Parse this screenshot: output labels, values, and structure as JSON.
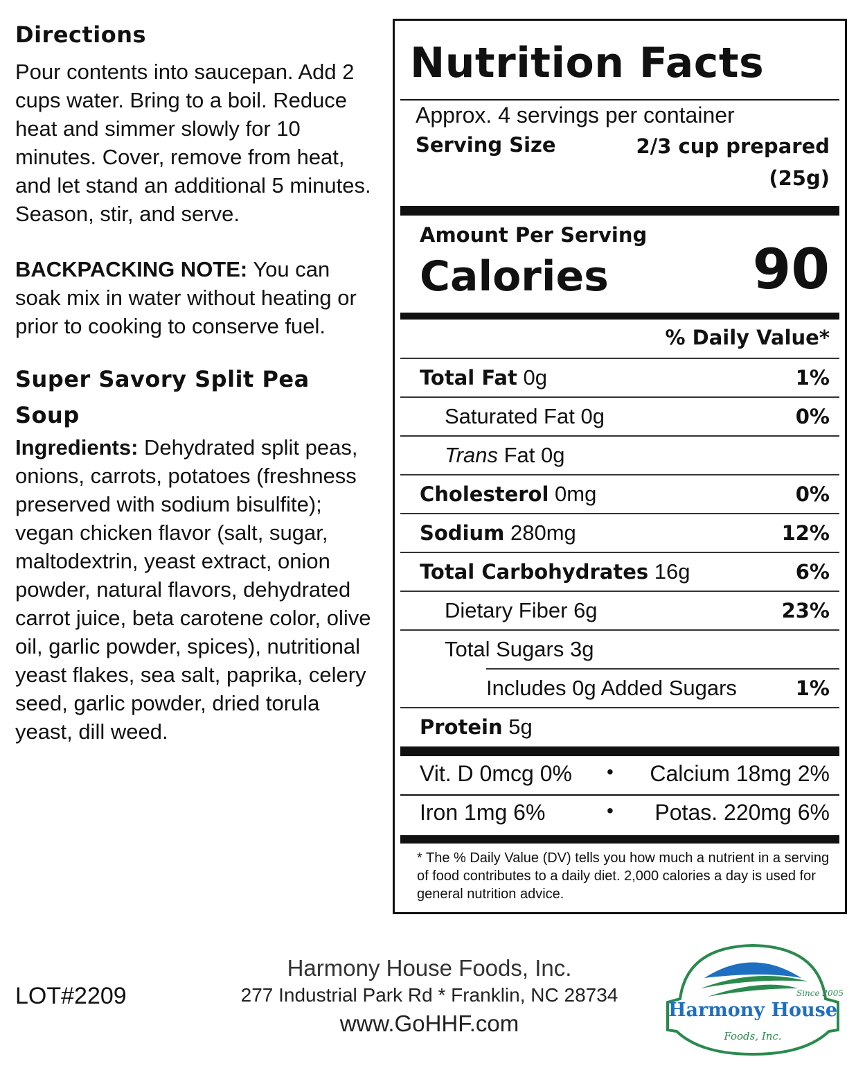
{
  "directions": {
    "heading": "Directions",
    "text": "Pour contents into saucepan. Add 2 cups water. Bring to a boil. Reduce heat and simmer slowly for 10 minutes. Cover, remove from heat, and let stand an additional 5 minutes. Season, stir, and serve."
  },
  "backpacking": {
    "label": "BACKPACKING NOTE:",
    "text": "You can soak mix in water without heating or prior to cooking to conserve fuel."
  },
  "product": {
    "name": "Super Savory Split Pea Soup",
    "ingredients_label": "Ingredients:",
    "ingredients": "Dehydrated split peas, onions, carrots, potatoes (freshness preserved with sodium bisulfite); vegan chicken flavor (salt, sugar, maltodextrin, yeast extract, onion powder, natural flavors, dehydrated carrot juice, beta carotene color, olive oil, garlic powder, spices), nutritional yeast flakes, sea salt, paprika, celery seed, garlic powder, dried torula yeast, dill weed."
  },
  "nutrition": {
    "title": "Nutrition Facts",
    "servings": "Approx. 4 servings per container",
    "serving_size_label": "Serving Size",
    "serving_size": "2/3 cup prepared",
    "serving_weight": "(25g)",
    "amount_per_serving": "Amount Per Serving",
    "calories_label": "Calories",
    "calories": "90",
    "dv_header": "% Daily Value*",
    "rows": [
      {
        "label": "Total Fat",
        "value": "0g",
        "pct": "1%"
      },
      {
        "label": "Saturated Fat",
        "value": "0g",
        "pct": "0%"
      },
      {
        "label": "Trans",
        "label2": "Fat 0g",
        "pct": ""
      },
      {
        "label": "Cholesterol",
        "value": "0mg",
        "pct": "0%"
      },
      {
        "label": "Sodium",
        "value": "280mg",
        "pct": "12%"
      },
      {
        "label": "Total Carbohydrates",
        "value": "16g",
        "pct": "6%"
      },
      {
        "label": "Dietary Fiber",
        "value": "6g",
        "pct": "23%"
      },
      {
        "label": "Total Sugars",
        "value": "3g",
        "pct": ""
      },
      {
        "label": "Includes 0g Added Sugars",
        "pct": "1%"
      },
      {
        "label": "Protein",
        "value": "5g"
      }
    ],
    "vitamins": [
      [
        "Vit. D 0mcg 0%",
        "Calcium 18mg 2%"
      ],
      [
        "Iron 1mg 6%",
        "Potas. 220mg 6%"
      ]
    ],
    "bullet": "•",
    "footnote": "* The % Daily Value (DV) tells you how much a nutrient in a serving of food contributes to a daily diet. 2,000 calories a day is used for general nutrition advice."
  },
  "lot": "LOT#2209",
  "company": {
    "name": "Harmony House Foods, Inc.",
    "address": "277 Industrial Park Rd * Franklin, NC 28734",
    "website": "www.GoHHF.com"
  },
  "logo": {
    "text": "Harmony House",
    "sub": "Foods, Inc.",
    "since": "Since 2005",
    "colors": {
      "blue": "#1f6fc0",
      "green": "#2a8a4e"
    }
  }
}
